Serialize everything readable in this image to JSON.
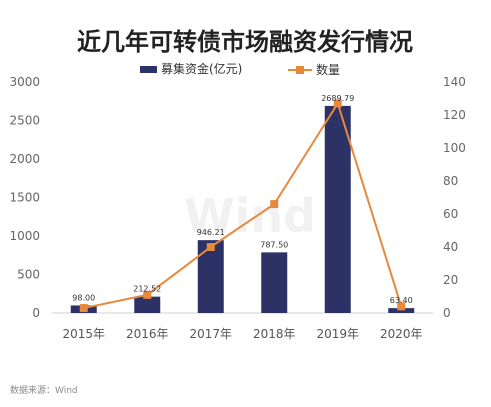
{
  "chart_data": {
    "type": "bar",
    "title": "近几年可转债市场融资发行情况",
    "categories": [
      "2015年",
      "2016年",
      "2017年",
      "2018年",
      "2019年",
      "2020年"
    ],
    "series": [
      {
        "name": "募集资金(亿元)",
        "type": "bar",
        "axis": "left",
        "values": [
          98.0,
          212.52,
          946.21,
          787.5,
          2689.79,
          63.4
        ],
        "labels": [
          "98.00",
          "212.52",
          "946.21",
          "787.50",
          "2689.79",
          "63.40"
        ],
        "color": "#2d3266"
      },
      {
        "name": "数量",
        "type": "line",
        "axis": "right",
        "values": [
          3,
          11,
          40,
          66,
          127,
          4
        ],
        "color": "#e8883a"
      }
    ],
    "y_left": {
      "min": 0,
      "max": 3000,
      "ticks": [
        "0",
        "500",
        "1000",
        "1500",
        "2000",
        "2500",
        "3000"
      ]
    },
    "y_right": {
      "min": 0,
      "max": 140,
      "ticks": [
        "0",
        "20",
        "40",
        "60",
        "80",
        "100",
        "120",
        "140"
      ]
    },
    "legend_position": "top-center",
    "grid": false,
    "source": "数据来源：Wind",
    "watermark": "Wind"
  }
}
